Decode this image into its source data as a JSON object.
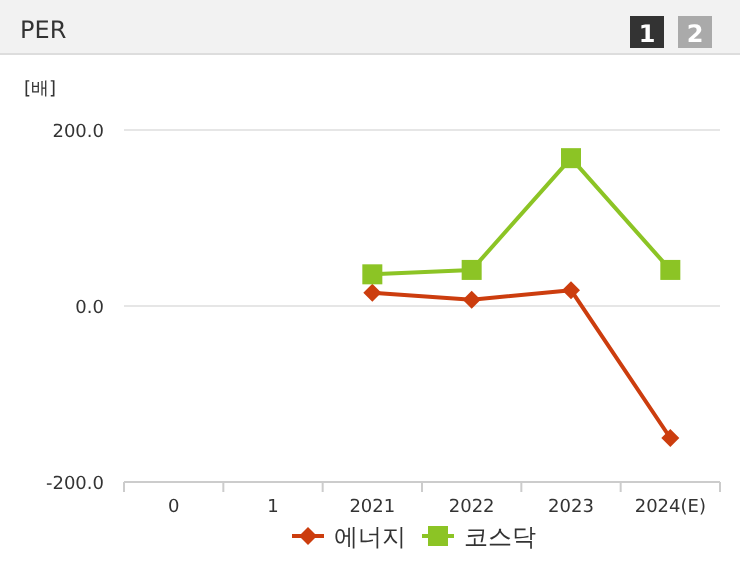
{
  "chart_data": {
    "type": "line",
    "title": "PER",
    "ylabel": "[배]",
    "annotations": [
      "1",
      "2"
    ],
    "categories": [
      "0",
      "1",
      "2021",
      "2022",
      "2023",
      "2024(E)"
    ],
    "series": [
      {
        "name": "에너지",
        "color": "#cc3d0e",
        "marker": "diamond",
        "values": [
          null,
          null,
          15,
          7,
          18,
          -150
        ]
      },
      {
        "name": "코스닥",
        "color": "#8cc425",
        "marker": "square",
        "values": [
          null,
          null,
          36,
          41,
          168,
          41
        ]
      }
    ],
    "ylim": [
      -200,
      200
    ],
    "yticks": [
      {
        "value": -200,
        "label": "-200.0"
      },
      {
        "value": 0,
        "label": "0.0"
      },
      {
        "value": 200,
        "label": "200.0"
      }
    ],
    "grid": "y",
    "legend": "bottom"
  }
}
